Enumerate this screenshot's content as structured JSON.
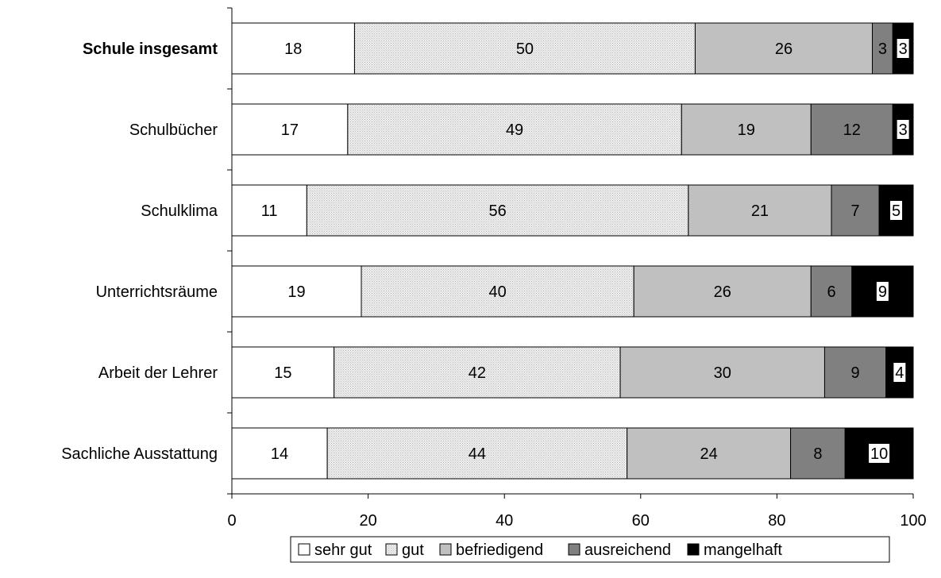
{
  "chart_data": {
    "type": "bar",
    "orientation": "horizontal",
    "stacked": true,
    "categories": [
      "Schule insgesamt",
      "Schulbücher",
      "Schulklima",
      "Unterrichtsräume",
      "Arbeit der Lehrer",
      "Sachliche Ausstattung"
    ],
    "bold_categories": [
      "Schule insgesamt"
    ],
    "series": [
      {
        "name": "sehr gut",
        "color": "#ffffff",
        "values": [
          18,
          17,
          11,
          19,
          15,
          14
        ]
      },
      {
        "name": "gut",
        "color": "#e8e8e8",
        "values": [
          50,
          49,
          56,
          40,
          42,
          44
        ]
      },
      {
        "name": "befriedigend",
        "color": "#c0c0c0",
        "values": [
          26,
          19,
          21,
          26,
          30,
          24
        ]
      },
      {
        "name": "ausreichend",
        "color": "#808080",
        "values": [
          3,
          12,
          7,
          6,
          9,
          8
        ]
      },
      {
        "name": "mangelhaft",
        "color": "#000000",
        "values": [
          3,
          3,
          5,
          9,
          4,
          10
        ]
      }
    ],
    "xlim": [
      0,
      100
    ],
    "xticks": [
      0,
      20,
      40,
      60,
      80,
      100
    ],
    "grid": false,
    "legend": "bottom",
    "title": "",
    "xlabel": "",
    "ylabel": ""
  }
}
